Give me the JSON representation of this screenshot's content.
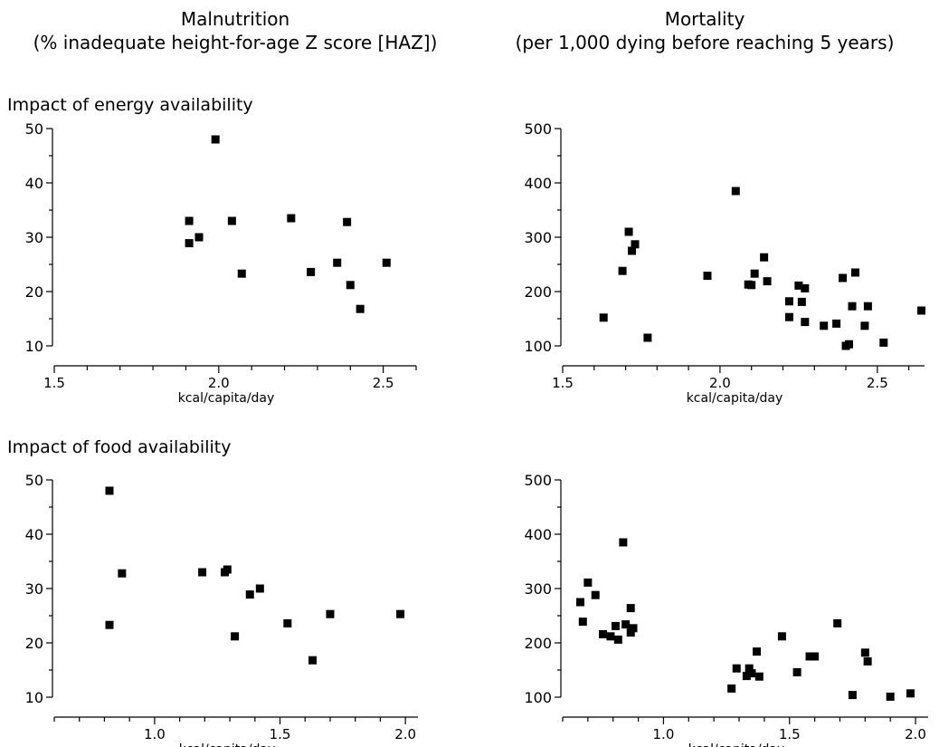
{
  "columns": [
    {
      "title": "Malnutrition",
      "subtitle": "(% inadequate height-for-age Z score [HAZ])"
    },
    {
      "title": "Mortality",
      "subtitle": "(per 1,000 dying before reaching 5 years)"
    }
  ],
  "rows": [
    {
      "label": "Impact of energy availability"
    },
    {
      "label": "Impact of food availability"
    }
  ],
  "marker_color": "#000000",
  "chart_data": [
    {
      "type": "scatter",
      "title": "",
      "xlabel": "kcal/capita/day",
      "ylabel": "",
      "xlim": [
        1.5,
        2.6
      ],
      "ylim": [
        10,
        50
      ],
      "xticks": [
        1.5,
        2.0,
        2.5
      ],
      "xtick_labels": [
        "1.5",
        "2.0",
        "2.5"
      ],
      "yticks": [
        10,
        20,
        30,
        40,
        50
      ],
      "ytick_labels": [
        "10",
        "20",
        "30",
        "40",
        "50"
      ],
      "grid": false,
      "points": [
        {
          "x": 1.99,
          "y": 48
        },
        {
          "x": 1.91,
          "y": 33
        },
        {
          "x": 1.91,
          "y": 28.9
        },
        {
          "x": 1.94,
          "y": 30
        },
        {
          "x": 2.04,
          "y": 33
        },
        {
          "x": 2.07,
          "y": 23.3
        },
        {
          "x": 2.22,
          "y": 33.5
        },
        {
          "x": 2.28,
          "y": 23.6
        },
        {
          "x": 2.36,
          "y": 25.3
        },
        {
          "x": 2.39,
          "y": 32.8
        },
        {
          "x": 2.4,
          "y": 21.2
        },
        {
          "x": 2.43,
          "y": 16.8
        },
        {
          "x": 2.51,
          "y": 25.3
        }
      ]
    },
    {
      "type": "scatter",
      "title": "",
      "xlabel": "kcal/capita/day",
      "ylabel": "",
      "xlim": [
        1.5,
        2.65
      ],
      "ylim": [
        100,
        500
      ],
      "xticks": [
        1.5,
        2.0,
        2.5
      ],
      "xtick_labels": [
        "1.5",
        "2.0",
        "2.5"
      ],
      "yticks": [
        100,
        200,
        300,
        400,
        500
      ],
      "ytick_labels": [
        "100",
        "200",
        "300",
        "400",
        "500"
      ],
      "grid": false,
      "points": [
        {
          "x": 1.63,
          "y": 152
        },
        {
          "x": 1.69,
          "y": 238
        },
        {
          "x": 1.71,
          "y": 310
        },
        {
          "x": 1.72,
          "y": 275
        },
        {
          "x": 1.73,
          "y": 287
        },
        {
          "x": 1.77,
          "y": 115
        },
        {
          "x": 1.96,
          "y": 229
        },
        {
          "x": 2.05,
          "y": 385
        },
        {
          "x": 2.09,
          "y": 213
        },
        {
          "x": 2.1,
          "y": 212
        },
        {
          "x": 2.11,
          "y": 233
        },
        {
          "x": 2.14,
          "y": 263
        },
        {
          "x": 2.15,
          "y": 219
        },
        {
          "x": 2.22,
          "y": 182
        },
        {
          "x": 2.22,
          "y": 153
        },
        {
          "x": 2.25,
          "y": 211
        },
        {
          "x": 2.26,
          "y": 181
        },
        {
          "x": 2.27,
          "y": 206
        },
        {
          "x": 2.27,
          "y": 144
        },
        {
          "x": 2.33,
          "y": 137
        },
        {
          "x": 2.37,
          "y": 141
        },
        {
          "x": 2.39,
          "y": 225
        },
        {
          "x": 2.4,
          "y": 100
        },
        {
          "x": 2.41,
          "y": 103
        },
        {
          "x": 2.42,
          "y": 173
        },
        {
          "x": 2.43,
          "y": 235
        },
        {
          "x": 2.46,
          "y": 137
        },
        {
          "x": 2.47,
          "y": 173
        },
        {
          "x": 2.52,
          "y": 106
        },
        {
          "x": 2.64,
          "y": 165
        }
      ]
    },
    {
      "type": "scatter",
      "title": "",
      "xlabel": "kcal/capita/day",
      "ylabel": "",
      "xlim": [
        0.6,
        2.05
      ],
      "ylim": [
        10,
        50
      ],
      "xticks": [
        1.0,
        1.5,
        2.0
      ],
      "xtick_labels": [
        "1.0",
        "1.5",
        "2.0"
      ],
      "yticks": [
        10,
        20,
        30,
        40,
        50
      ],
      "ytick_labels": [
        "10",
        "20",
        "30",
        "40",
        "50"
      ],
      "grid": false,
      "points": [
        {
          "x": 0.82,
          "y": 48
        },
        {
          "x": 0.82,
          "y": 23.3
        },
        {
          "x": 0.87,
          "y": 32.8
        },
        {
          "x": 1.19,
          "y": 33
        },
        {
          "x": 1.28,
          "y": 33
        },
        {
          "x": 1.29,
          "y": 33.5
        },
        {
          "x": 1.32,
          "y": 21.2
        },
        {
          "x": 1.38,
          "y": 28.9
        },
        {
          "x": 1.42,
          "y": 30
        },
        {
          "x": 1.53,
          "y": 23.6
        },
        {
          "x": 1.63,
          "y": 16.8
        },
        {
          "x": 1.7,
          "y": 25.3
        },
        {
          "x": 1.98,
          "y": 25.3
        }
      ]
    },
    {
      "type": "scatter",
      "title": "",
      "xlabel": "kcal/capita/day",
      "ylabel": "",
      "xlim": [
        0.6,
        2.05
      ],
      "ylim": [
        100,
        500
      ],
      "xticks": [
        1.0,
        1.5,
        2.0
      ],
      "xtick_labels": [
        "1.0",
        "1.5",
        "2.0"
      ],
      "yticks": [
        100,
        200,
        300,
        400,
        500
      ],
      "ytick_labels": [
        "100",
        "200",
        "300",
        "400",
        "500"
      ],
      "grid": false,
      "points": [
        {
          "x": 0.67,
          "y": 275
        },
        {
          "x": 0.68,
          "y": 239
        },
        {
          "x": 0.7,
          "y": 311
        },
        {
          "x": 0.73,
          "y": 288
        },
        {
          "x": 0.76,
          "y": 216
        },
        {
          "x": 0.79,
          "y": 212
        },
        {
          "x": 0.81,
          "y": 231
        },
        {
          "x": 0.82,
          "y": 206
        },
        {
          "x": 0.84,
          "y": 385
        },
        {
          "x": 0.85,
          "y": 234
        },
        {
          "x": 0.87,
          "y": 264
        },
        {
          "x": 0.87,
          "y": 219
        },
        {
          "x": 0.88,
          "y": 227
        },
        {
          "x": 1.27,
          "y": 116
        },
        {
          "x": 1.29,
          "y": 153
        },
        {
          "x": 1.33,
          "y": 139
        },
        {
          "x": 1.34,
          "y": 153
        },
        {
          "x": 1.35,
          "y": 144
        },
        {
          "x": 1.37,
          "y": 184
        },
        {
          "x": 1.38,
          "y": 138
        },
        {
          "x": 1.47,
          "y": 212
        },
        {
          "x": 1.53,
          "y": 146
        },
        {
          "x": 1.58,
          "y": 175
        },
        {
          "x": 1.6,
          "y": 175
        },
        {
          "x": 1.69,
          "y": 236
        },
        {
          "x": 1.75,
          "y": 104
        },
        {
          "x": 1.8,
          "y": 182
        },
        {
          "x": 1.81,
          "y": 166
        },
        {
          "x": 1.9,
          "y": 101
        },
        {
          "x": 1.98,
          "y": 107
        }
      ]
    }
  ]
}
